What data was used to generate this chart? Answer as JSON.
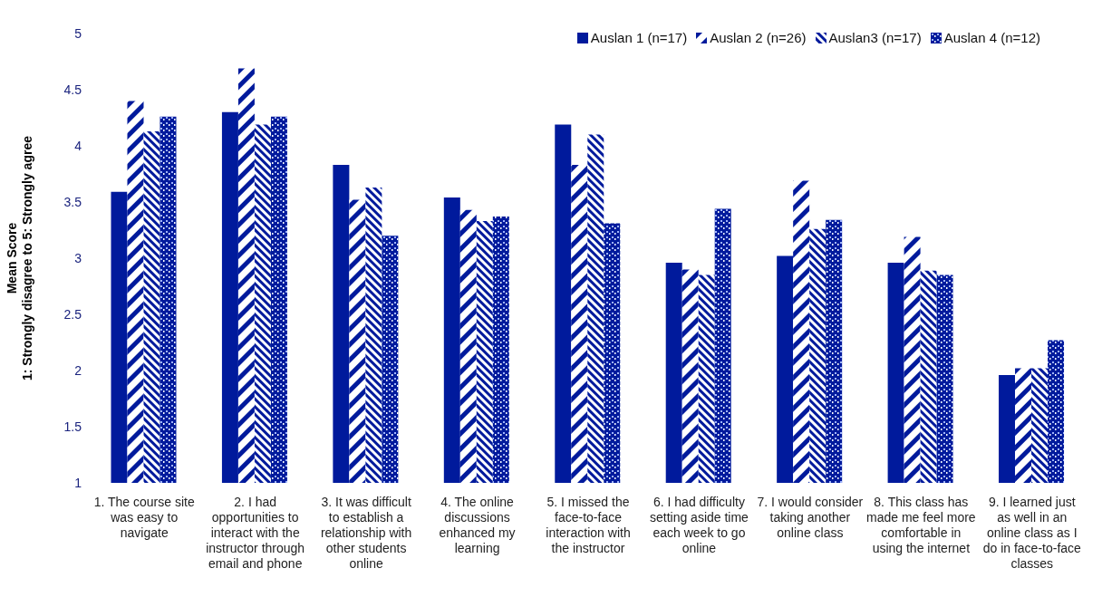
{
  "chart_data": {
    "type": "bar",
    "ylabel": "Mean Score\n1: Strongly disagree to 5: Strongly agree",
    "categories": [
      "1. The course site was easy to navigate",
      "2. I had opportunities to interact with the instructor through email and phone",
      "3. It was difficult to establish a relationship with other students online",
      "4. The online discussions enhanced my learning",
      "5. I missed the face-to-face interaction with the instructor",
      "6. I had difficulty setting aside time each week to go online",
      "7. I would consider taking another online class",
      "8. This class has made me feel more comfortable in using the internet",
      "9. I learned just as well in an online class as I do in face-to-face classes"
    ],
    "series": [
      {
        "name": "Auslan 1 (n=17)",
        "color": "#001a9c",
        "values": [
          3.59,
          4.3,
          3.83,
          3.54,
          4.19,
          2.96,
          3.02,
          2.96,
          1.96
        ]
      },
      {
        "name": "Auslan 2 (n=26)",
        "color": "#001a9c",
        "values": [
          4.4,
          4.69,
          3.52,
          3.43,
          3.83,
          2.9,
          3.69,
          3.19,
          2.02
        ]
      },
      {
        "name": "Auslan3 (n=17)",
        "color": "#001a9c",
        "values": [
          4.13,
          4.19,
          3.63,
          3.33,
          4.1,
          2.85,
          3.26,
          2.89,
          2.02
        ]
      },
      {
        "name": "Auslan 4 (n=12)",
        "color": "#001a9c",
        "values": [
          4.26,
          4.26,
          3.2,
          3.37,
          3.31,
          3.44,
          3.34,
          2.85,
          2.27
        ]
      }
    ],
    "ylim": [
      1,
      5
    ],
    "yticks": [
      1,
      1.5,
      2,
      2.5,
      3,
      3.5,
      4,
      4.5,
      5
    ],
    "grid": false,
    "legend": "top right"
  }
}
